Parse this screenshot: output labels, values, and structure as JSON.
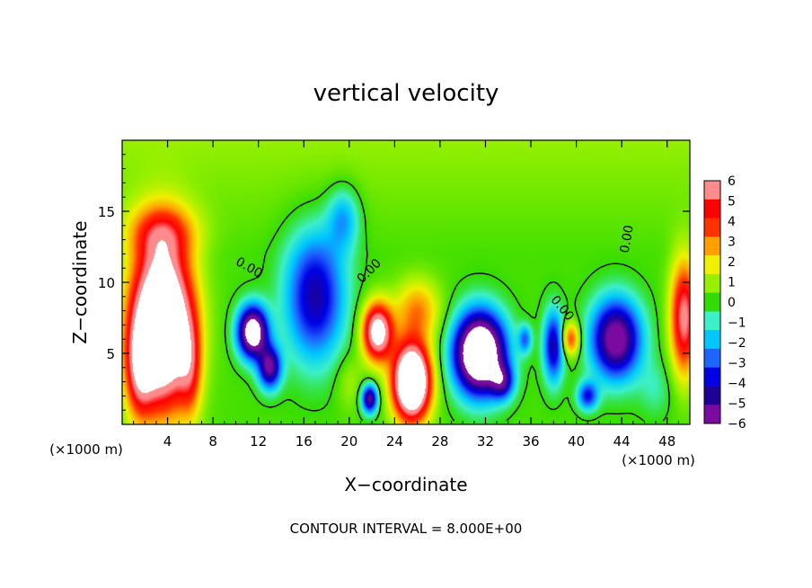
{
  "chart_data": {
    "type": "heatmap",
    "title": "vertical velocity",
    "xlabel": "X−coordinate",
    "ylabel": "Z−coordinate",
    "x_unit_left": "(×1000 m)",
    "x_unit_right": "(×1000 m)",
    "footer": "CONTOUR INTERVAL = 8.000E+00",
    "xlim": [
      0,
      50
    ],
    "ylim": [
      0,
      20
    ],
    "x_ticks": [
      4,
      8,
      12,
      16,
      20,
      24,
      28,
      32,
      36,
      40,
      44,
      48
    ],
    "y_ticks": [
      5,
      10,
      15
    ],
    "zero_contour_label": "0.00",
    "colorbar": {
      "levels": [
        -6,
        -5,
        -4,
        -3,
        -2,
        -1,
        0,
        1,
        2,
        3,
        4,
        5,
        6
      ],
      "labels": [
        "6",
        "5",
        "4",
        "3",
        "2",
        "1",
        "0",
        "−1",
        "−2",
        "−3",
        "−4",
        "−5",
        "−6"
      ],
      "colors": [
        "#7a0aa0",
        "#1e0096",
        "#0000e6",
        "#1e64ff",
        "#00c8ff",
        "#3cf0c8",
        "#32dc00",
        "#96f000",
        "#f0f000",
        "#ffa000",
        "#ff3200",
        "#ff0000",
        "#ff8c8c"
      ]
    },
    "cells": [
      {
        "x": 3.5,
        "z": 7,
        "sx": 2.6,
        "sz": 5.5,
        "w": 12
      },
      {
        "x": 1.5,
        "z": 4,
        "sx": 1.2,
        "sz": 3.5,
        "w": 4
      },
      {
        "x": 6.0,
        "z": 4,
        "sx": 1.0,
        "sz": 3.5,
        "w": 3
      },
      {
        "x": 3.5,
        "z": 13.5,
        "sx": 3.0,
        "sz": 2.0,
        "w": 3
      },
      {
        "x": 11.5,
        "z": 6.5,
        "sx": 1.3,
        "sz": 1.8,
        "w": -9
      },
      {
        "x": 13.0,
        "z": 4.0,
        "sx": 1.0,
        "sz": 1.5,
        "w": -6
      },
      {
        "x": 17.0,
        "z": 9.0,
        "sx": 2.6,
        "sz": 4.5,
        "w": -5
      },
      {
        "x": 19.5,
        "z": 14.5,
        "sx": 1.4,
        "sz": 2.2,
        "w": -2.5
      },
      {
        "x": 22.5,
        "z": 6.5,
        "sx": 1.3,
        "sz": 2.0,
        "w": 8
      },
      {
        "x": 25.5,
        "z": 3.0,
        "sx": 1.6,
        "sz": 2.6,
        "w": 12
      },
      {
        "x": 26.0,
        "z": 8.0,
        "sx": 2.0,
        "sz": 2.2,
        "w": 3
      },
      {
        "x": 21.8,
        "z": 1.8,
        "sx": 0.7,
        "sz": 1.0,
        "w": -6
      },
      {
        "x": 31.5,
        "z": 5.0,
        "sx": 2.2,
        "sz": 2.8,
        "w": -11
      },
      {
        "x": 33.5,
        "z": 3.0,
        "sx": 1.0,
        "sz": 1.2,
        "w": -4
      },
      {
        "x": 35.5,
        "z": 6.0,
        "sx": 0.6,
        "sz": 1.0,
        "w": -3
      },
      {
        "x": 38.0,
        "z": 5.5,
        "sx": 0.9,
        "sz": 2.5,
        "w": -5
      },
      {
        "x": 39.5,
        "z": 6.0,
        "sx": 0.8,
        "sz": 1.2,
        "w": 4
      },
      {
        "x": 43.5,
        "z": 6.0,
        "sx": 2.2,
        "sz": 2.8,
        "w": -7
      },
      {
        "x": 41.0,
        "z": 2.0,
        "sx": 0.9,
        "sz": 1.0,
        "w": -4
      },
      {
        "x": 49.5,
        "z": 7.5,
        "sx": 1.2,
        "sz": 4.0,
        "w": 6
      },
      {
        "x": 47.0,
        "z": 2.5,
        "sx": 1.5,
        "sz": 2.0,
        "w": -1
      },
      {
        "x": 20.0,
        "z": 3.0,
        "sx": 1.2,
        "sz": 2.0,
        "w": 1
      }
    ],
    "background_top": 1,
    "background_mid": 0.2
  }
}
